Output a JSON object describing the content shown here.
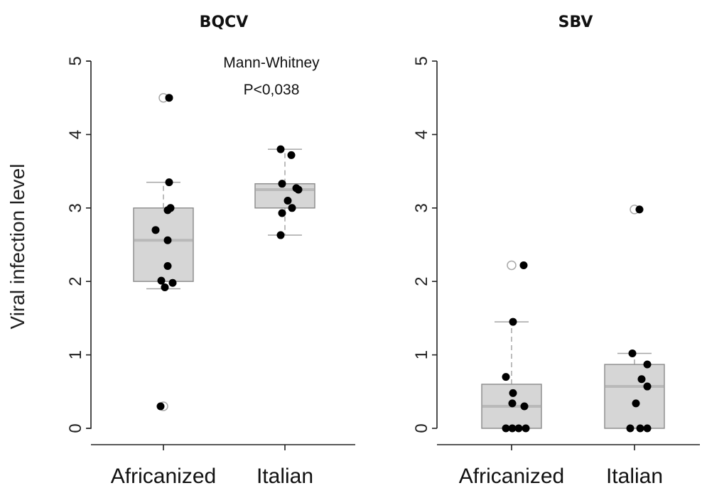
{
  "chart_data": [
    {
      "type": "box",
      "title": "BQCV",
      "xlabel": "",
      "ylabel": "Viral infection level",
      "ylim": [
        0,
        5
      ],
      "yticks": [
        "0",
        "1",
        "2",
        "3",
        "4",
        "5"
      ],
      "categories": [
        "Africanized",
        "Italian"
      ],
      "annotation": [
        "Mann-Whitney",
        "P<0,038"
      ],
      "boxes": [
        {
          "category": "Africanized",
          "q1": 2.0,
          "median": 2.56,
          "q3": 3.0,
          "whisker_low": 1.9,
          "whisker_high": 3.35,
          "outliers": [
            4.5,
            0.3
          ]
        },
        {
          "category": "Italian",
          "q1": 3.0,
          "median": 3.25,
          "q3": 3.33,
          "whisker_low": 2.63,
          "whisker_high": 3.8,
          "outliers": []
        }
      ],
      "points": [
        {
          "category": "Africanized",
          "y": [
            4.5,
            3.35,
            3.0,
            2.97,
            2.7,
            2.56,
            2.21,
            2.01,
            1.98,
            1.92,
            0.3
          ]
        },
        {
          "category": "Italian",
          "y": [
            3.8,
            3.72,
            3.33,
            3.27,
            3.25,
            3.1,
            3.0,
            2.93,
            2.63
          ]
        }
      ]
    },
    {
      "type": "box",
      "title": "SBV",
      "xlabel": "",
      "ylabel": "",
      "ylim": [
        0,
        5
      ],
      "yticks": [
        "0",
        "1",
        "2",
        "3",
        "4",
        "5"
      ],
      "categories": [
        "Africanized",
        "Italian"
      ],
      "boxes": [
        {
          "category": "Africanized",
          "q1": 0.0,
          "median": 0.3,
          "q3": 0.6,
          "whisker_low": 0.0,
          "whisker_high": 1.45,
          "outliers": [
            2.22
          ]
        },
        {
          "category": "Italian",
          "q1": 0.0,
          "median": 0.57,
          "q3": 0.87,
          "whisker_low": 0.0,
          "whisker_high": 1.02,
          "outliers": [
            2.98
          ]
        }
      ],
      "points": [
        {
          "category": "Africanized",
          "y": [
            2.22,
            1.45,
            0.7,
            0.48,
            0.34,
            0.3,
            0.0,
            0.0,
            0.0,
            0.0
          ]
        },
        {
          "category": "Italian",
          "y": [
            2.98,
            1.02,
            0.87,
            0.67,
            0.57,
            0.34,
            0.0,
            0.0,
            0.0
          ]
        }
      ]
    }
  ]
}
